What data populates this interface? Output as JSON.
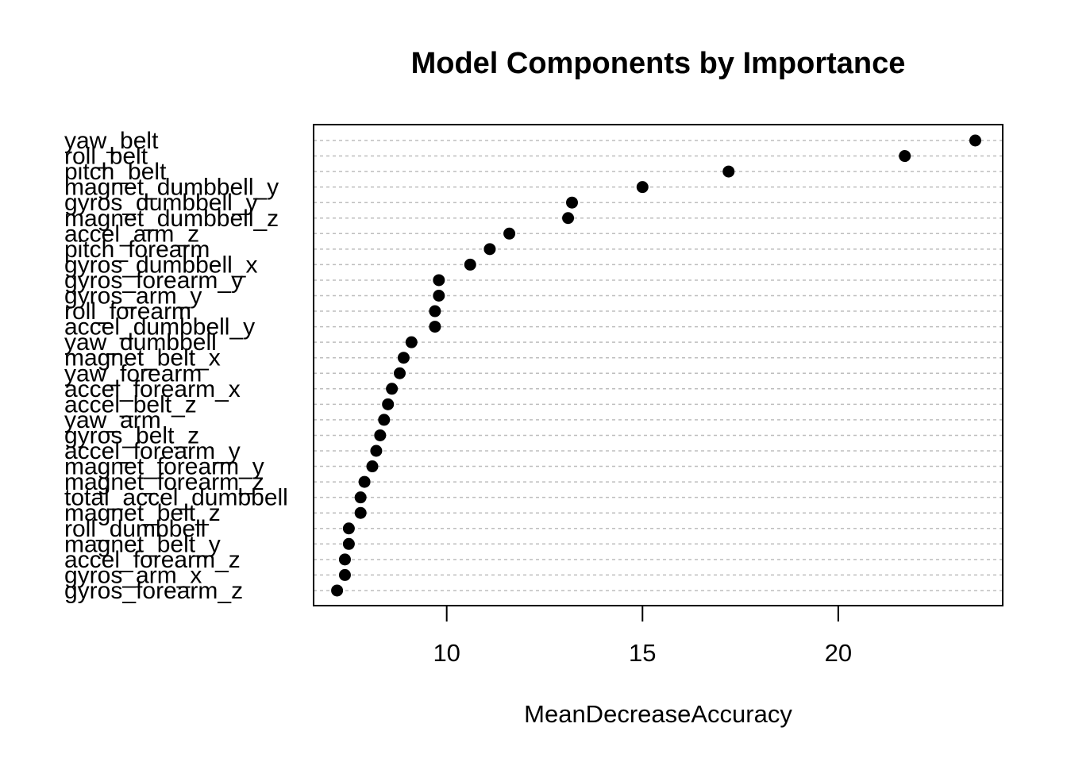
{
  "chart_data": {
    "type": "scatter",
    "title": "Model Components by Importance",
    "xlabel": "MeanDecreaseAccuracy",
    "ylabel": "",
    "xlim": [
      6.6,
      24.2
    ],
    "xticks": [
      10,
      15,
      20
    ],
    "grid": true,
    "legend": "none",
    "categories": [
      "yaw_belt",
      "roll_belt",
      "pitch_belt",
      "magnet_dumbbell_y",
      "gyros_dumbbell_y",
      "magnet_dumbbell_z",
      "accel_arm_z",
      "pitch_forearm",
      "gyros_dumbbell_x",
      "gyros_forearm_y",
      "gyros_arm_y",
      "roll_forearm",
      "accel_dumbbell_y",
      "yaw_dumbbell",
      "magnet_belt_x",
      "yaw_forearm",
      "accel_forearm_x",
      "accel_belt_z",
      "yaw_arm",
      "gyros_belt_z",
      "accel_forearm_y",
      "magnet_forearm_y",
      "magnet_forearm_z",
      "total_accel_dumbbell",
      "magnet_belt_z",
      "roll_dumbbell",
      "magnet_belt_y",
      "accel_forearm_z",
      "gyros_arm_x",
      "gyros_forearm_z"
    ],
    "values": [
      23.5,
      21.7,
      17.2,
      15.0,
      13.2,
      13.1,
      11.6,
      11.1,
      10.6,
      9.8,
      9.8,
      9.7,
      9.7,
      9.1,
      8.9,
      8.8,
      8.6,
      8.5,
      8.4,
      8.3,
      8.2,
      8.1,
      7.9,
      7.8,
      7.8,
      7.5,
      7.5,
      7.4,
      7.4,
      7.2
    ]
  }
}
